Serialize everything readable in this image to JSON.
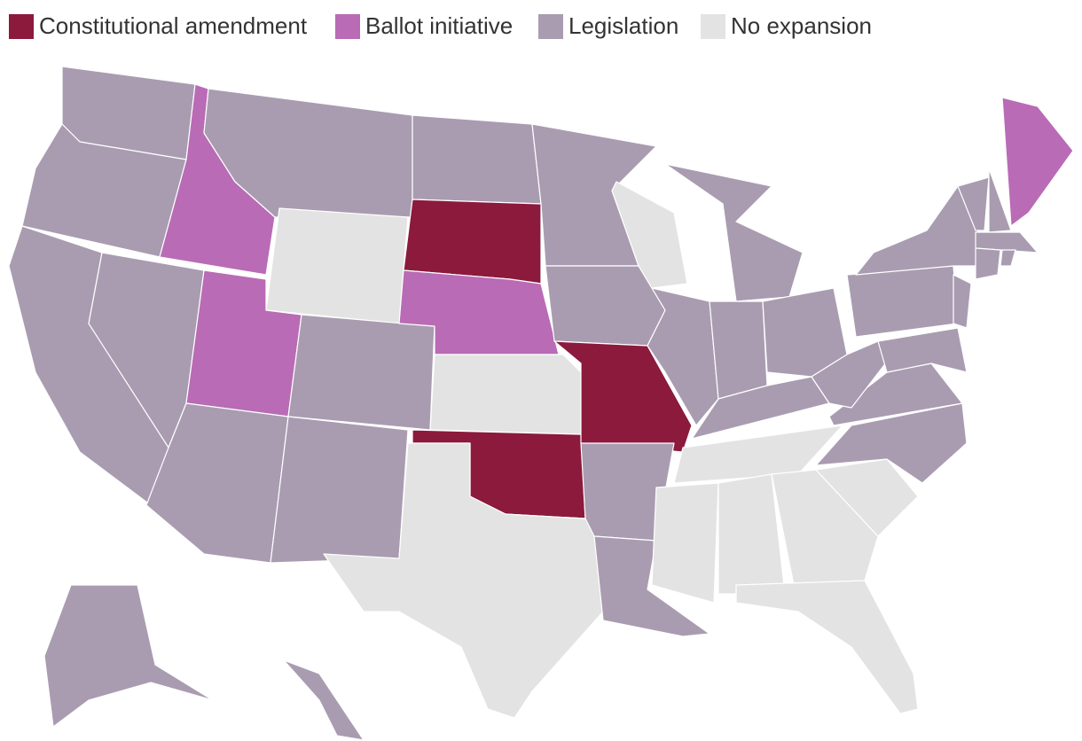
{
  "legend": [
    {
      "label": "Constitutional amendment",
      "color": "#8b1a3c"
    },
    {
      "label": "Ballot initiative",
      "color": "#b96bb6"
    },
    {
      "label": "Legislation",
      "color": "#a99cb1"
    },
    {
      "label": "No expansion",
      "color": "#e3e3e3"
    }
  ]
}
